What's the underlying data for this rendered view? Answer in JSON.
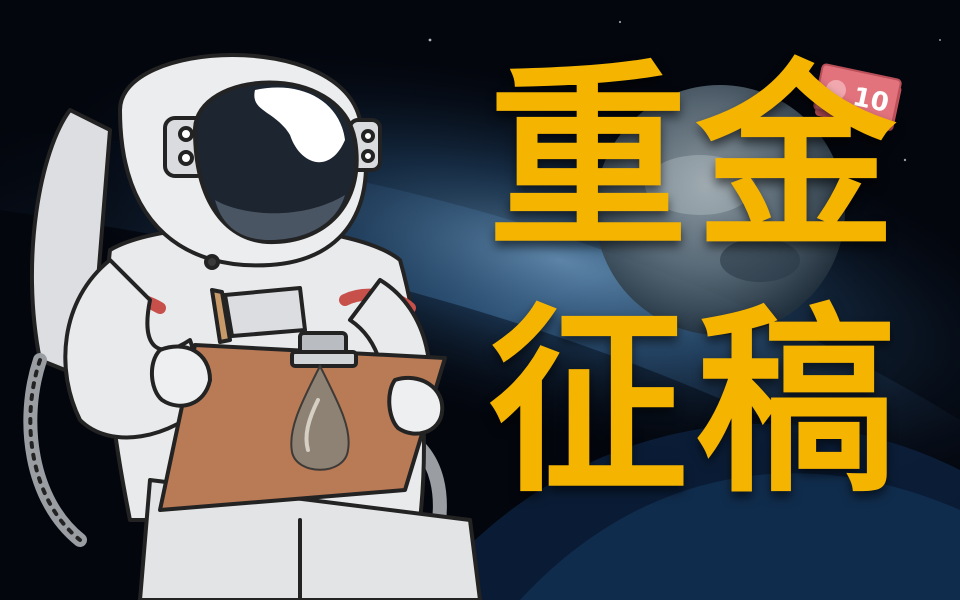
{
  "title": {
    "line1": "重金",
    "line2": "征稿"
  },
  "banknote": {
    "denomination": "10"
  },
  "colors": {
    "title": "#f5b400",
    "space": "#04070f",
    "planet_glow": "#3f6f9a",
    "suit": "#e9eaec",
    "outline": "#232323",
    "stripe": "#c8504a",
    "clipboard": "#b97a56",
    "banknote": "#e2737d"
  },
  "icons": [
    "astronaut-illustration",
    "clipboard-icon",
    "pencil-icon",
    "water-drop-icon",
    "banknote-icon",
    "earth-icon"
  ]
}
